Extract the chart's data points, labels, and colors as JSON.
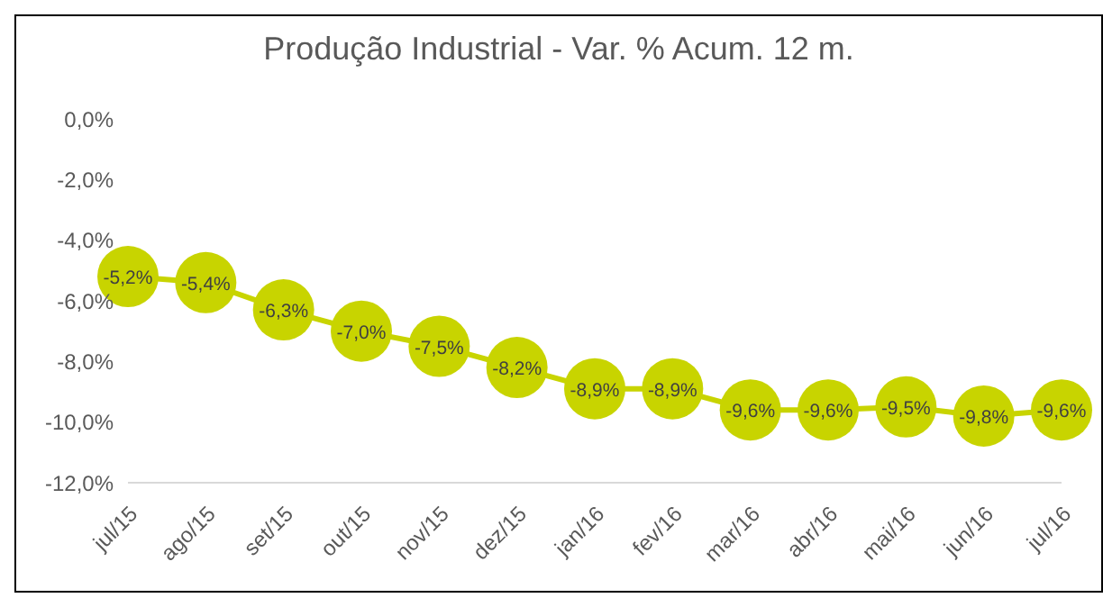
{
  "chart_data": {
    "type": "line",
    "title": "Produção Industrial - Var. % Acum. 12 m.",
    "categories": [
      "jul/15",
      "ago/15",
      "set/15",
      "out/15",
      "nov/15",
      "dez/15",
      "jan/16",
      "fev/16",
      "mar/16",
      "abr/16",
      "mai/16",
      "jun/16",
      "jul/16"
    ],
    "series": [
      {
        "color": "#c8d400",
        "values": [
          -5.2,
          -5.4,
          -6.3,
          -7.0,
          -7.5,
          -8.2,
          -8.9,
          -8.9,
          -9.6,
          -9.6,
          -9.5,
          -9.8,
          -9.6
        ],
        "value_labels": [
          "-5,2%",
          "-5,4%",
          "-6,3%",
          "-7,0%",
          "-7,5%",
          "-8,2%",
          "-8,9%",
          "-8,9%",
          "-9,6%",
          "-9,6%",
          "-9,5%",
          "-9,8%",
          "-9,6%"
        ]
      }
    ],
    "ylim": [
      -12,
      0
    ],
    "yticks": [
      {
        "value": 0,
        "label": "0,0%"
      },
      {
        "value": -2,
        "label": "-2,0%"
      },
      {
        "value": -4,
        "label": "-4,0%"
      },
      {
        "value": -6,
        "label": "-6,0%"
      },
      {
        "value": -8,
        "label": "-8,0%"
      },
      {
        "value": -10,
        "label": "-10,0%"
      },
      {
        "value": -12,
        "label": "-12,0%"
      }
    ],
    "marker": "circle",
    "line_style": "solid",
    "grid": false,
    "legend": false
  }
}
